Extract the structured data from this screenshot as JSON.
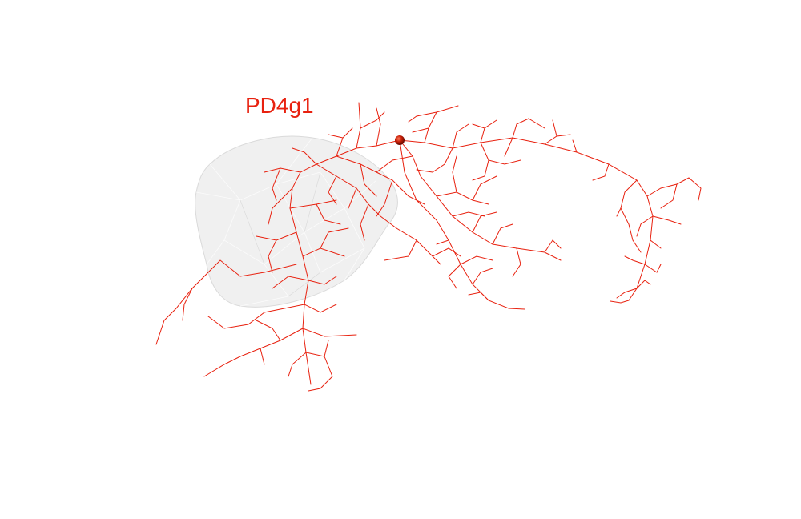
{
  "neuron": {
    "name": "PD4g1",
    "color": "#e8210f",
    "soma_color": "#b01800"
  },
  "neuropil": {
    "fill": "#e9e9e9",
    "stroke": "#d8d8d8"
  }
}
